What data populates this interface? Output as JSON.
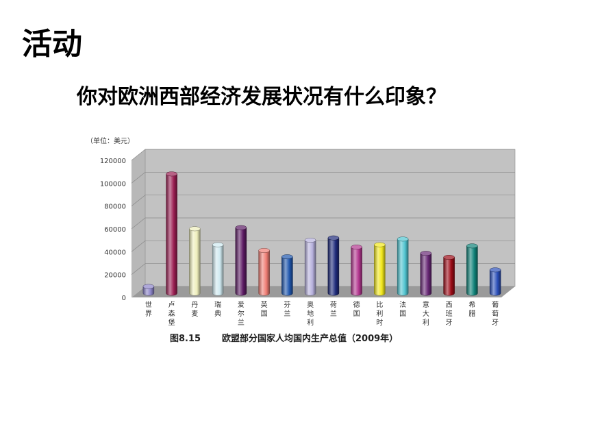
{
  "slide": {
    "heading": "活动",
    "question": "你对欧洲西部经济发展状况有什么印象？"
  },
  "chart_data": {
    "type": "bar",
    "title": "欧盟部分国家人均国内生产总值（2009年）",
    "figure_label": "图8.15",
    "unit_label": "（单位：美元）",
    "categories": [
      "世界",
      "卢森堡",
      "丹麦",
      "瑞典",
      "爱尔兰",
      "英国",
      "芬兰",
      "奥地利",
      "荷兰",
      "德国",
      "比利时",
      "法国",
      "意大利",
      "西班牙",
      "希腊",
      "葡萄牙"
    ],
    "values": [
      6000,
      104500,
      56500,
      42500,
      57500,
      37500,
      32000,
      46500,
      48500,
      40500,
      42500,
      47500,
      35000,
      31500,
      41500,
      20500
    ],
    "colors": [
      "#8c84c8",
      "#9a1e52",
      "#eeeebc",
      "#cfe9f0",
      "#5b1a63",
      "#ef7d74",
      "#1f56ad",
      "#b6b0dd",
      "#1e2a7a",
      "#b2358e",
      "#f2e81c",
      "#50c4d0",
      "#672774",
      "#9c0a16",
      "#0f8278",
      "#2b4fb8"
    ],
    "ylim": [
      0,
      120000
    ],
    "yticks": [
      "0",
      "20000",
      "40000",
      "60000",
      "80000",
      "100000",
      "120000"
    ],
    "grid": true
  }
}
